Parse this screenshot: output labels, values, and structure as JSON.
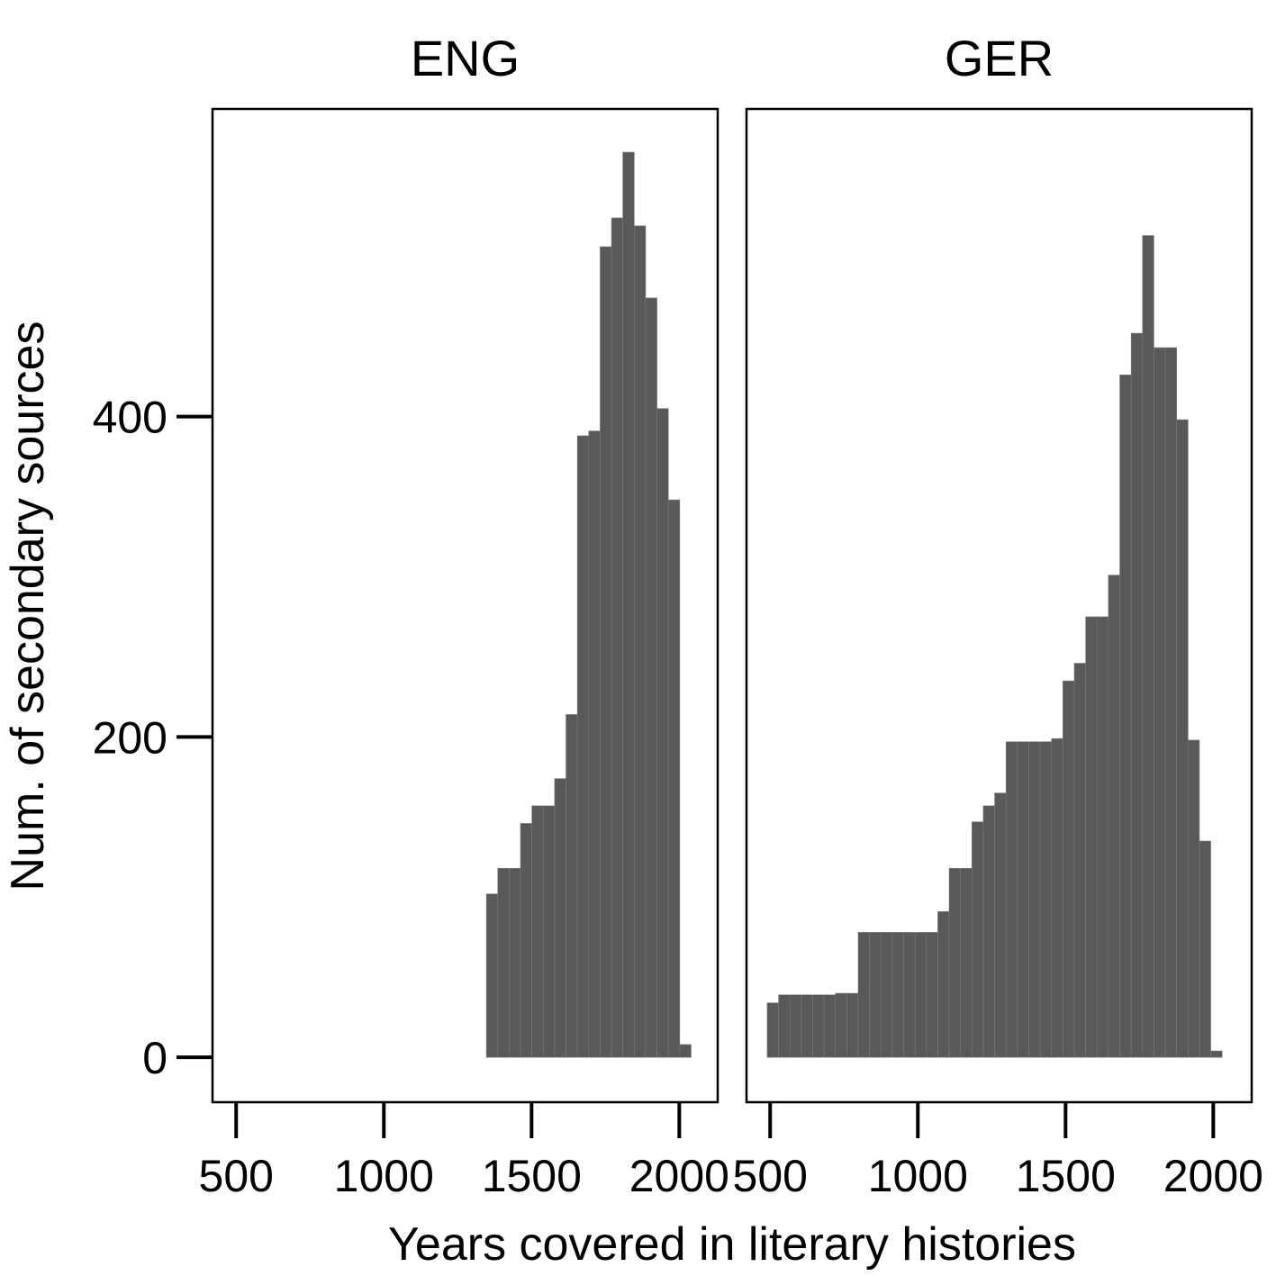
{
  "chart_data": {
    "type": "bar",
    "xlabel": "Years covered in literary histories",
    "ylabel": "Num. of secondary sources",
    "xlim": [
      420,
      2130
    ],
    "ylim": [
      -28,
      592
    ],
    "x_ticks": [
      500,
      1000,
      1500,
      2000
    ],
    "y_ticks": [
      0,
      200,
      400
    ],
    "bin_width": 38.5,
    "colors": {
      "bar": "#595959",
      "bar_edge": "#7a7a7a",
      "frame": "#000000"
    },
    "panels": [
      {
        "title": "ENG",
        "bins": [
          {
            "x": 1347,
            "y": 102
          },
          {
            "x": 1385.5,
            "y": 118
          },
          {
            "x": 1424,
            "y": 118
          },
          {
            "x": 1462.5,
            "y": 146
          },
          {
            "x": 1501,
            "y": 157
          },
          {
            "x": 1539.5,
            "y": 157
          },
          {
            "x": 1578,
            "y": 174
          },
          {
            "x": 1616.5,
            "y": 214
          },
          {
            "x": 1655,
            "y": 388
          },
          {
            "x": 1693.5,
            "y": 391
          },
          {
            "x": 1732,
            "y": 506
          },
          {
            "x": 1770.5,
            "y": 524
          },
          {
            "x": 1809,
            "y": 565
          },
          {
            "x": 1847.5,
            "y": 519
          },
          {
            "x": 1886,
            "y": 474
          },
          {
            "x": 1924.5,
            "y": 405
          },
          {
            "x": 1963,
            "y": 348
          },
          {
            "x": 2001.5,
            "y": 8
          }
        ]
      },
      {
        "title": "GER",
        "bins": [
          {
            "x": 490,
            "y": 34
          },
          {
            "x": 528.5,
            "y": 39
          },
          {
            "x": 567,
            "y": 39
          },
          {
            "x": 605.5,
            "y": 39
          },
          {
            "x": 644,
            "y": 39
          },
          {
            "x": 682.5,
            "y": 39
          },
          {
            "x": 721,
            "y": 40
          },
          {
            "x": 759.5,
            "y": 40
          },
          {
            "x": 798,
            "y": 78
          },
          {
            "x": 836.5,
            "y": 78
          },
          {
            "x": 875,
            "y": 78
          },
          {
            "x": 913.5,
            "y": 78
          },
          {
            "x": 952,
            "y": 78
          },
          {
            "x": 990.5,
            "y": 78
          },
          {
            "x": 1029,
            "y": 78
          },
          {
            "x": 1067.5,
            "y": 91
          },
          {
            "x": 1106,
            "y": 118
          },
          {
            "x": 1144.5,
            "y": 118
          },
          {
            "x": 1183,
            "y": 147
          },
          {
            "x": 1221.5,
            "y": 157
          },
          {
            "x": 1260,
            "y": 165
          },
          {
            "x": 1298.5,
            "y": 197
          },
          {
            "x": 1337,
            "y": 197
          },
          {
            "x": 1375.5,
            "y": 197
          },
          {
            "x": 1414,
            "y": 197
          },
          {
            "x": 1452.5,
            "y": 199
          },
          {
            "x": 1491,
            "y": 235
          },
          {
            "x": 1529.5,
            "y": 246
          },
          {
            "x": 1568,
            "y": 275
          },
          {
            "x": 1606.5,
            "y": 275
          },
          {
            "x": 1645,
            "y": 301
          },
          {
            "x": 1683.5,
            "y": 426
          },
          {
            "x": 1722,
            "y": 452
          },
          {
            "x": 1760.5,
            "y": 513
          },
          {
            "x": 1799,
            "y": 443
          },
          {
            "x": 1837.5,
            "y": 443
          },
          {
            "x": 1876,
            "y": 398
          },
          {
            "x": 1914.5,
            "y": 198
          },
          {
            "x": 1953,
            "y": 135
          },
          {
            "x": 1991.5,
            "y": 4
          }
        ]
      }
    ]
  }
}
